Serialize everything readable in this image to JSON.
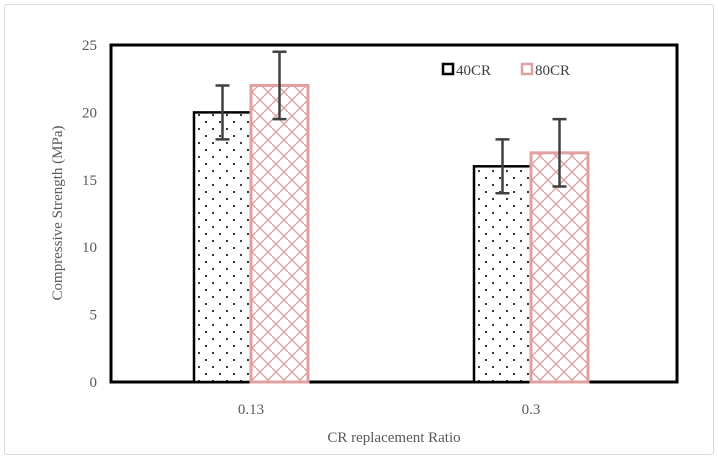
{
  "chart_data": {
    "type": "bar",
    "categories": [
      "0.13",
      "0.3"
    ],
    "series": [
      {
        "name": "40CR",
        "values": [
          20,
          16
        ],
        "errors": [
          2,
          2
        ],
        "color": "#000000",
        "pattern": "dots"
      },
      {
        "name": "80CR",
        "values": [
          22,
          17
        ],
        "errors": [
          2.5,
          2.5
        ],
        "color": "#e0a0a0",
        "pattern": "brick"
      }
    ],
    "xlabel": "CR replacement Ratio",
    "ylabel": "Compressive Strength (MPa)",
    "ylim": [
      0,
      25
    ],
    "yticks": [
      "0",
      "5",
      "10",
      "15",
      "20",
      "25"
    ],
    "grid": false,
    "legend_position": "top-right",
    "error_bar_color": "#404040",
    "plot_border_color": "#000000"
  }
}
